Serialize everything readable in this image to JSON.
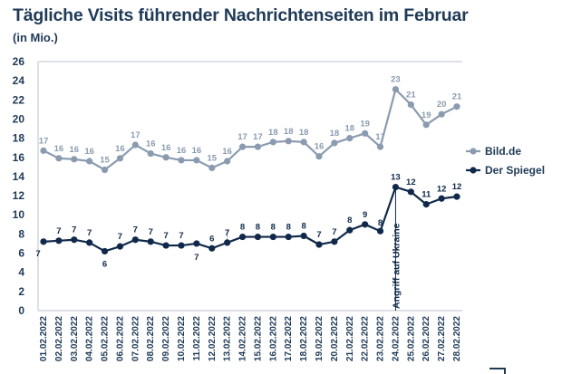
{
  "chart_data": {
    "type": "line",
    "title": "Tägliche Visits führender Nachrichtenseiten im Februar",
    "subtitle": "(in Mio.)",
    "ylim": [
      0,
      26
    ],
    "yticks": [
      0,
      2,
      4,
      6,
      8,
      10,
      12,
      14,
      16,
      18,
      20,
      22,
      24,
      26
    ],
    "categories": [
      "01.02.2022",
      "02.02.2022",
      "03.02.2022",
      "04.02.2022",
      "05.02.2022",
      "06.02.2022",
      "07.02.2022",
      "08.02.2022",
      "09.02.2022",
      "10.02.2022",
      "11.02.2022",
      "12.02.2022",
      "13.02.2022",
      "14.02.2022",
      "15.02.2022",
      "16.02.2022",
      "17.02.2022",
      "18.02.2022",
      "19.02.2022",
      "20.02.2022",
      "21.02.2022",
      "22.02.2022",
      "23.02.2022",
      "24.02.2022",
      "25.02.2022",
      "26.02.2022",
      "27.02.2022",
      "28.02.2022"
    ],
    "series": [
      {
        "name": "Bild.de",
        "color": "#8a9bb0",
        "values": [
          16.7,
          15.9,
          15.8,
          15.6,
          14.7,
          15.9,
          17.3,
          16.4,
          16.0,
          15.7,
          15.7,
          14.9,
          15.6,
          17.1,
          17.1,
          17.6,
          17.7,
          17.6,
          16.1,
          17.5,
          18.0,
          18.5,
          17.1,
          23.1,
          21.5,
          19.4,
          20.5,
          21.3
        ],
        "labels": [
          "17",
          "16",
          "16",
          "16",
          "15",
          "16",
          "17",
          "16",
          "16",
          "16",
          "16",
          "15",
          "16",
          "17",
          "17",
          "18",
          "18",
          "18",
          "16",
          "18",
          "18",
          "19",
          "17",
          "23",
          "21",
          "19",
          "20",
          "21"
        ]
      },
      {
        "name": "Der Spiegel",
        "color": "#10294a",
        "values": [
          7.2,
          7.3,
          7.4,
          7.1,
          6.2,
          6.7,
          7.4,
          7.2,
          6.8,
          6.8,
          7.0,
          6.5,
          7.1,
          7.7,
          7.7,
          7.7,
          7.7,
          7.8,
          6.9,
          7.2,
          8.4,
          9.0,
          8.3,
          12.9,
          12.4,
          11.1,
          11.7,
          11.9
        ],
        "labels": [
          "7",
          "7",
          "7",
          "7",
          "6",
          "7",
          "7",
          "7",
          "7",
          "7",
          "7",
          "6",
          "7",
          "8",
          "8",
          "8",
          "8",
          "8",
          "7",
          "7",
          "8",
          "9",
          "8",
          "13",
          "12",
          "11",
          "12",
          "12"
        ]
      }
    ],
    "annotation": {
      "text": "Angriff auf Ukraine",
      "category": "24.02.2022"
    },
    "legend_position": "right",
    "grid": false
  }
}
